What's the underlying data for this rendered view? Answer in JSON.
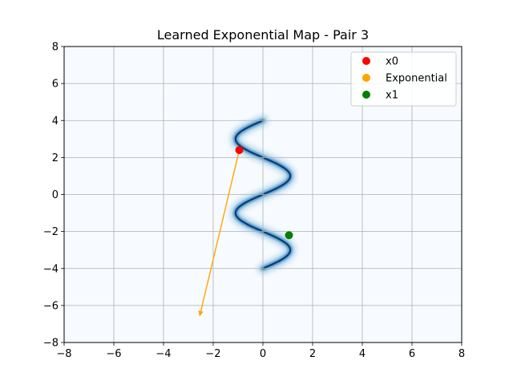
{
  "chart_data": {
    "type": "scatter",
    "title": "Learned Exponential Map - Pair 3",
    "xlabel": "",
    "ylabel": "",
    "xlim": [
      -8,
      8
    ],
    "ylim": [
      -8,
      8
    ],
    "xticks": [
      -8,
      -6,
      -4,
      -2,
      0,
      2,
      4,
      6,
      8
    ],
    "yticks": [
      -8,
      -6,
      -4,
      -2,
      0,
      2,
      4,
      6,
      8
    ],
    "grid": true,
    "legend_position": "top-right",
    "background_density": {
      "description_colormap": "Blues",
      "curve_x_center": 0,
      "curve_amplitude": 1.1,
      "curve_y_range": [
        -4,
        4
      ]
    },
    "series": [
      {
        "name": "x0",
        "color": "#ff0000",
        "x": [
          -0.95
        ],
        "y": [
          2.4
        ]
      },
      {
        "name": "Exponential",
        "color": "#ffa500",
        "arrow": {
          "from": [
            -0.95,
            2.4
          ],
          "to": [
            -2.55,
            -6.6
          ]
        }
      },
      {
        "name": "x1",
        "color": "#008000",
        "x": [
          1.05
        ],
        "y": [
          -2.2
        ]
      }
    ]
  }
}
